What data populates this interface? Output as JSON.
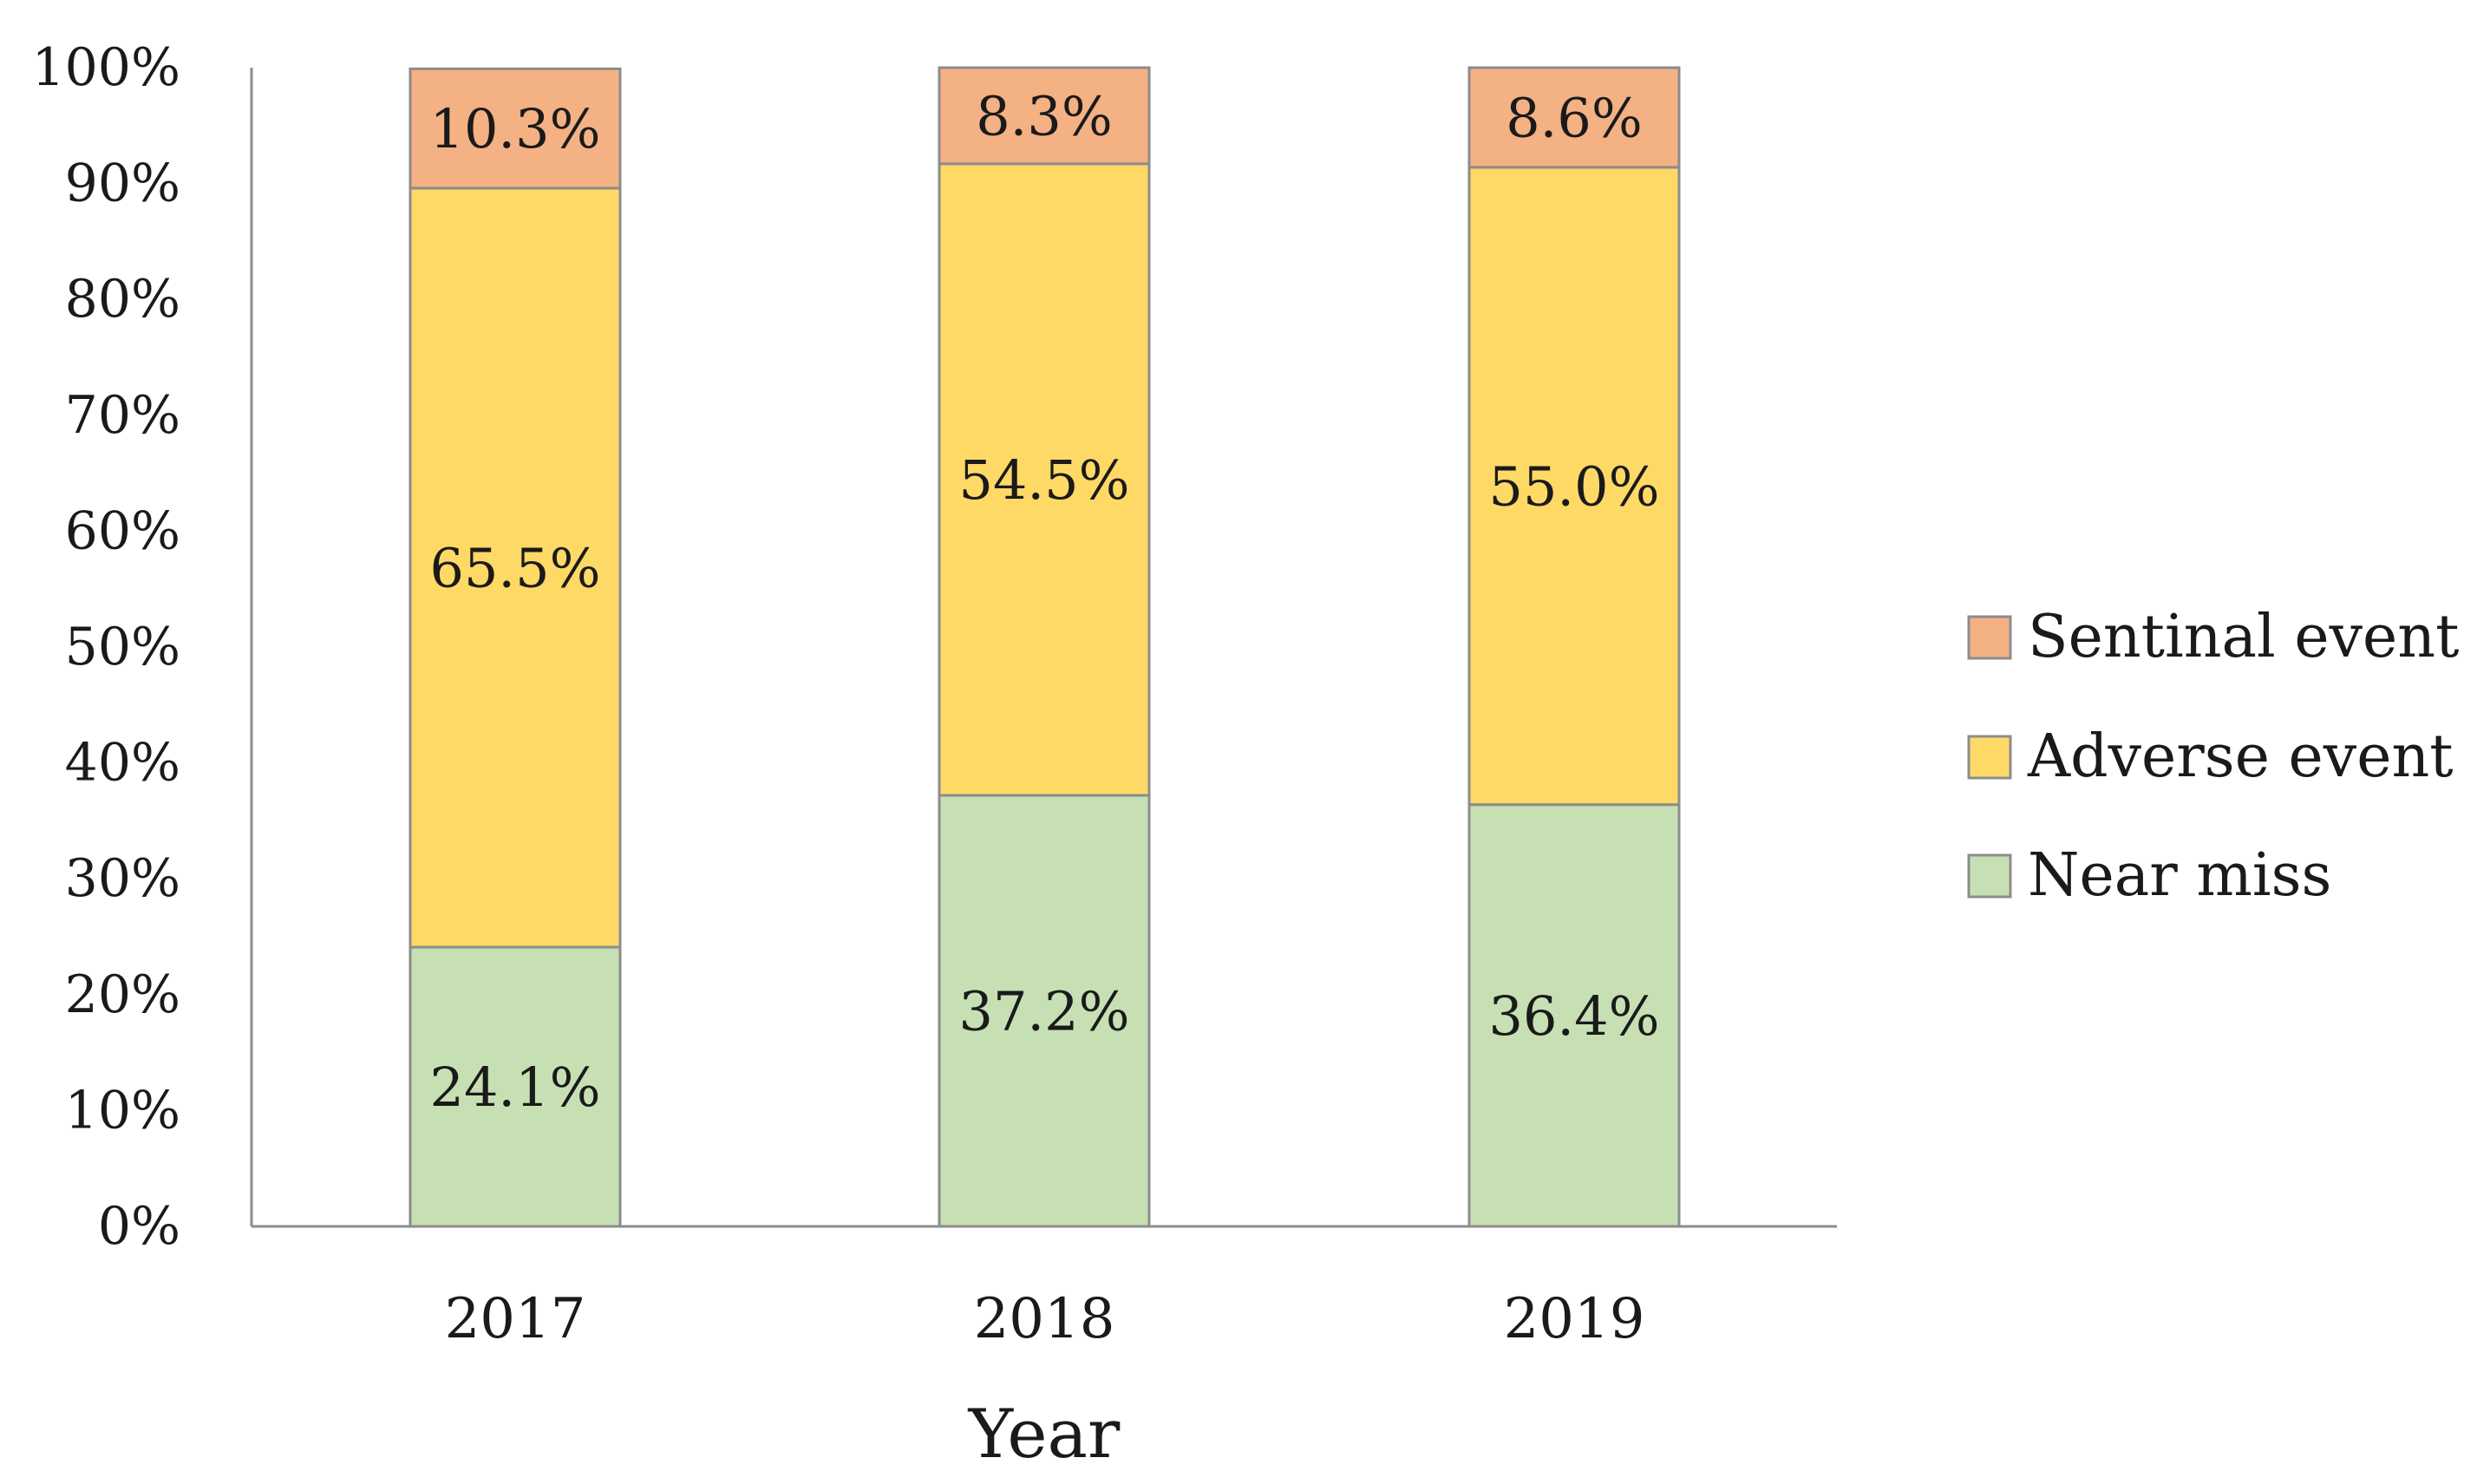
{
  "chart_data": {
    "type": "bar",
    "stacked": true,
    "title": "",
    "xlabel": "Year",
    "ylabel": "",
    "ylim": [
      0,
      100
    ],
    "y_ticks": [
      "0%",
      "10%",
      "20%",
      "30%",
      "40%",
      "50%",
      "60%",
      "70%",
      "80%",
      "90%",
      "100%"
    ],
    "categories": [
      "2017",
      "2018",
      "2019"
    ],
    "series": [
      {
        "name": "Near miss",
        "color": "#c6e0b4",
        "values": [
          24.1,
          37.2,
          36.4
        ],
        "labels": [
          "24.1%",
          "37.2%",
          "36.4%"
        ]
      },
      {
        "name": "Adverse event",
        "color": "#ffd966",
        "values": [
          65.5,
          54.5,
          55.0
        ],
        "labels": [
          "65.5%",
          "54.5%",
          "55.0%"
        ]
      },
      {
        "name": "Sentinal event",
        "color": "#f4b183",
        "values": [
          10.3,
          8.3,
          8.6
        ],
        "labels": [
          "10.3%",
          "8.3%",
          "8.6%"
        ]
      }
    ],
    "legend": {
      "position": "right",
      "order": [
        "Sentinal event",
        "Adverse event",
        "Near miss"
      ]
    },
    "grid": false
  }
}
